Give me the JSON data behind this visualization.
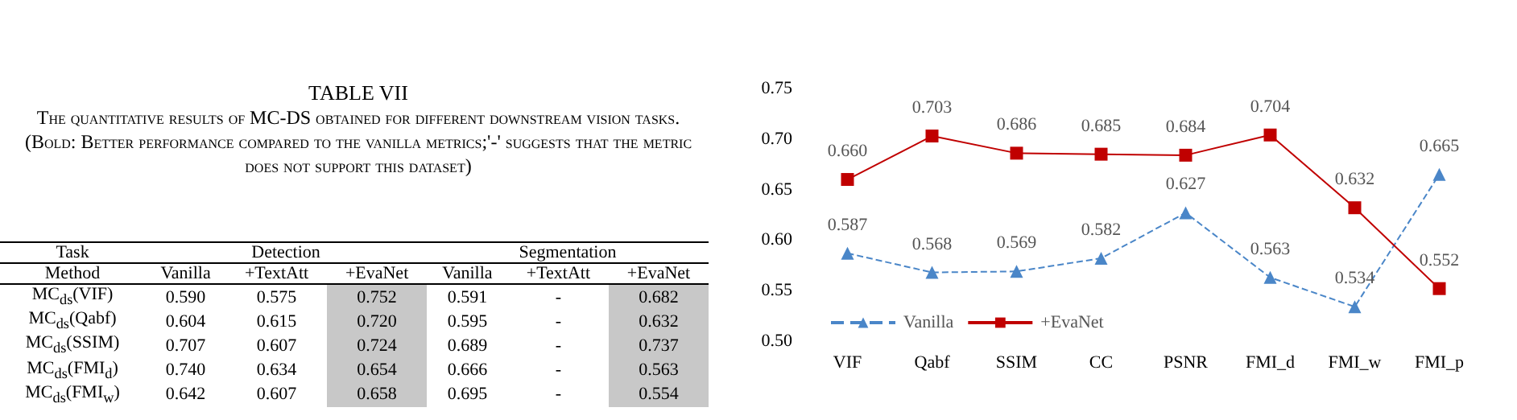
{
  "chart_data": [
    {
      "type": "other",
      "title": "TABLE VII",
      "subtitle": "The quantitative results of MC-DS obtained for different downstream vision tasks. (Bold: Better performance compared to the vanilla metrics;'-' suggests that the metric does not support this dataset)",
      "annotations": [
        "Task",
        "Detection",
        "Segmentation",
        "Method",
        "Vanilla",
        "+TextAtt",
        "+EvaNet",
        "Vanilla",
        "+TextAtt",
        "+EvaNet",
        "MC$_{ds}$(VIF)",
        "0.590",
        "0.575",
        "0.752",
        "0.591",
        "-",
        "0.682",
        "MC$_{ds}$(Qabf)",
        "0.604",
        "0.615",
        "0.720",
        "0.595",
        "-",
        "0.632",
        "MC$_{ds}$(SSIM)",
        "0.707",
        "0.607",
        "0.724",
        "0.689",
        "-",
        "0.737",
        "MC$_{ds}$(FMI$_{d}$)",
        "0.740",
        "0.634",
        "0.654",
        "0.666",
        "-",
        "0.563",
        "MC$_{ds}$(FMI$_{w}$)",
        "0.642",
        "0.607",
        "0.658",
        "0.695",
        "-",
        "0.554"
      ]
    },
    {
      "type": "line",
      "categories": [
        "VIF",
        "Qabf",
        "SSIM",
        "CC",
        "PSNR",
        "FMI_d",
        "FMI_w",
        "FMI_p"
      ],
      "series": [
        {
          "name": "Vanilla",
          "color": "#4a86c8",
          "marker": "triangle",
          "line_style": "dashed",
          "values": [
            0.587,
            0.568,
            0.569,
            0.582,
            0.627,
            0.563,
            0.534,
            0.665
          ],
          "value_labels": [
            "0.587",
            "0.568",
            "0.569",
            "0.582",
            "0.627",
            "0.563",
            "0.534",
            "0.665"
          ]
        },
        {
          "name": "+EvaNet",
          "color": "#c00000",
          "marker": "square",
          "line_style": "solid",
          "values": [
            0.66,
            0.703,
            0.686,
            0.685,
            0.684,
            0.704,
            0.632,
            0.552
          ],
          "value_labels": [
            "0.660",
            "0.703",
            "0.686",
            "0.685",
            "0.684",
            "0.704",
            "0.632",
            "0.552"
          ]
        }
      ],
      "ylim": [
        0.5,
        0.75
      ],
      "yticks": [
        {
          "value": 0.5,
          "label": "0.50"
        },
        0.55,
        {
          "value": 0.6,
          "label": "0.60"
        },
        0.65,
        {
          "value": 0.7,
          "label": "0.70"
        },
        0.75
      ],
      "legend": "bottom left",
      "grid": false
    }
  ]
}
